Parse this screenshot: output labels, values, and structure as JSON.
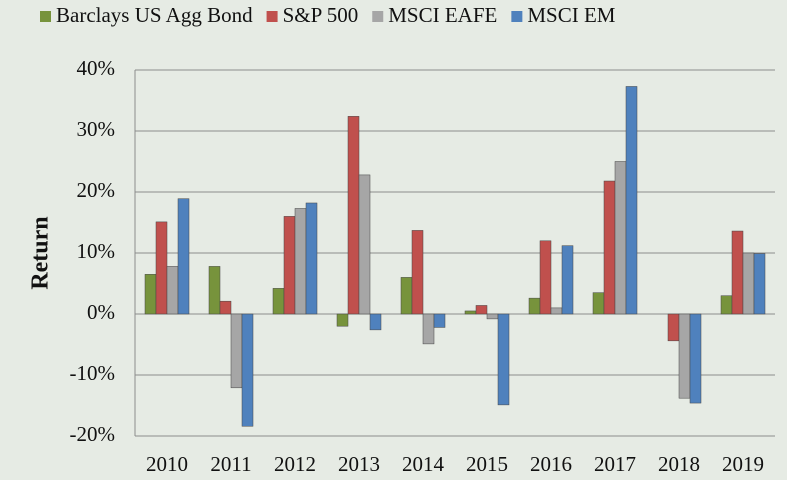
{
  "chart_data": {
    "type": "bar",
    "y_label": "Return",
    "categories": [
      "2010",
      "2011",
      "2012",
      "2013",
      "2014",
      "2015",
      "2016",
      "2017",
      "2018",
      "2019"
    ],
    "series": [
      {
        "name": "Barclays US Agg Bond",
        "color": "#77933c",
        "values": [
          6.5,
          7.8,
          4.2,
          -2.0,
          6.0,
          0.5,
          2.6,
          3.5,
          0.0,
          3.0
        ]
      },
      {
        "name": "S&P 500",
        "color": "#c0504d",
        "values": [
          15.1,
          2.1,
          16.0,
          32.4,
          13.7,
          1.4,
          12.0,
          21.8,
          -4.4,
          13.6
        ]
      },
      {
        "name": "MSCI EAFE",
        "color": "#a6a6a6",
        "values": [
          7.8,
          -12.1,
          17.3,
          22.8,
          -4.9,
          -0.8,
          1.0,
          25.0,
          -13.8,
          10.0
        ]
      },
      {
        "name": "MSCI EM",
        "color": "#4f81bd",
        "values": [
          18.9,
          -18.4,
          18.2,
          -2.6,
          -2.2,
          -14.9,
          11.2,
          37.3,
          -14.6,
          9.9
        ]
      }
    ],
    "ylim": [
      -20,
      40
    ],
    "yticks": [
      {
        "value": -20,
        "label": "-20%"
      },
      {
        "value": -10,
        "label": "-10%"
      },
      {
        "value": 0,
        "label": "0%"
      },
      {
        "value": 10,
        "label": "10%"
      },
      {
        "value": 20,
        "label": "20%"
      },
      {
        "value": 30,
        "label": "30%"
      },
      {
        "value": 40,
        "label": "40%"
      }
    ],
    "grid": true
  }
}
